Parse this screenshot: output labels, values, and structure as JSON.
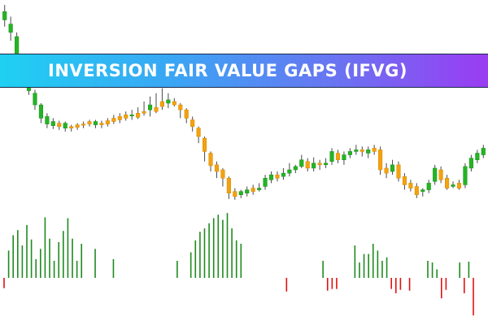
{
  "banner": {
    "title": "INVERSION FAIR VALUE GAPS (IFVG)"
  },
  "colors": {
    "bull": "#23b523",
    "bear": "#f4a10f",
    "wick": "#4a4a4a",
    "hist_positive": "#1f8a1f",
    "hist_negative": "#e01010",
    "banner_start": "#1fd0f2",
    "banner_end": "#9a3cf2"
  },
  "chart_data": [
    {
      "type": "candlestick",
      "candles": [
        [
          220,
          230,
          238,
          212
        ],
        [
          205,
          215,
          224,
          195
        ],
        [
          170,
          200,
          205,
          165
        ],
        [
          150,
          170,
          175,
          142
        ],
        [
          135,
          150,
          152,
          130
        ],
        [
          118,
          132,
          136,
          112
        ],
        [
          102,
          118,
          120,
          96
        ],
        [
          95,
          104,
          108,
          90
        ],
        [
          93,
          98,
          102,
          89
        ],
        [
          96,
          92,
          99,
          88
        ],
        [
          90,
          96,
          98,
          86
        ],
        [
          92,
          90,
          94,
          86
        ],
        [
          94,
          91,
          96,
          88
        ],
        [
          95,
          94,
          98,
          90
        ],
        [
          98,
          95,
          100,
          92
        ],
        [
          94,
          98,
          100,
          90
        ],
        [
          96,
          94,
          99,
          90
        ],
        [
          99,
          95,
          102,
          92
        ],
        [
          102,
          98,
          106,
          95
        ],
        [
          104,
          100,
          108,
          96
        ],
        [
          106,
          102,
          110,
          99
        ],
        [
          105,
          106,
          112,
          100
        ],
        [
          108,
          103,
          115,
          101
        ],
        [
          110,
          108,
          122,
          105
        ],
        [
          112,
          118,
          128,
          104
        ],
        [
          115,
          110,
          132,
          108
        ],
        [
          122,
          116,
          138,
          112
        ],
        [
          120,
          124,
          132,
          114
        ],
        [
          122,
          118,
          126,
          116
        ],
        [
          118,
          112,
          120,
          102
        ],
        [
          112,
          102,
          114,
          96
        ],
        [
          100,
          92,
          104,
          86
        ],
        [
          90,
          80,
          92,
          72
        ],
        [
          78,
          62,
          80,
          50
        ],
        [
          60,
          45,
          62,
          38
        ],
        [
          46,
          38,
          50,
          30
        ],
        [
          40,
          30,
          42,
          20
        ],
        [
          30,
          12,
          32,
          5
        ],
        [
          14,
          8,
          18,
          4
        ],
        [
          10,
          14,
          16,
          6
        ],
        [
          12,
          16,
          20,
          8
        ],
        [
          18,
          14,
          22,
          10
        ],
        [
          16,
          18,
          24,
          14
        ],
        [
          20,
          30,
          34,
          16
        ],
        [
          28,
          34,
          38,
          24
        ],
        [
          34,
          30,
          38,
          26
        ],
        [
          32,
          36,
          42,
          28
        ],
        [
          36,
          40,
          48,
          32
        ],
        [
          40,
          44,
          46,
          36
        ],
        [
          44,
          52,
          58,
          42
        ],
        [
          50,
          42,
          54,
          38
        ],
        [
          42,
          48,
          55,
          38
        ],
        [
          48,
          46,
          52,
          40
        ],
        [
          46,
          48,
          54,
          42
        ],
        [
          50,
          62,
          66,
          46
        ],
        [
          60,
          52,
          64,
          48
        ],
        [
          52,
          58,
          62,
          46
        ],
        [
          58,
          62,
          66,
          54
        ],
        [
          62,
          64,
          70,
          58
        ],
        [
          64,
          62,
          68,
          56
        ],
        [
          60,
          64,
          68,
          54
        ],
        [
          66,
          62,
          70,
          58
        ],
        [
          64,
          40,
          68,
          34
        ],
        [
          42,
          36,
          48,
          30
        ],
        [
          38,
          46,
          52,
          34
        ],
        [
          46,
          30,
          50,
          26
        ],
        [
          32,
          22,
          36,
          16
        ],
        [
          24,
          18,
          28,
          14
        ],
        [
          20,
          10,
          24,
          6
        ],
        [
          14,
          16,
          18,
          8
        ],
        [
          16,
          24,
          28,
          12
        ],
        [
          26,
          42,
          46,
          22
        ],
        [
          40,
          28,
          44,
          24
        ],
        [
          30,
          18,
          34,
          16
        ],
        [
          20,
          22,
          26,
          18
        ],
        [
          24,
          18,
          28,
          16
        ],
        [
          22,
          44,
          48,
          18
        ],
        [
          42,
          54,
          58,
          38
        ],
        [
          52,
          60,
          64,
          48
        ],
        [
          58,
          66,
          70,
          54
        ]
      ]
    },
    {
      "type": "bar",
      "values": [
        -1.2,
        3.2,
        5.0,
        5.6,
        3.8,
        6.2,
        4.5,
        2.2,
        3.4,
        7.1,
        4.6,
        2.0,
        4.2,
        5.5,
        7.0,
        4.6,
        2.0,
        4.0,
        0,
        0,
        3.4,
        0,
        0,
        0,
        2.2,
        0,
        0,
        0,
        0,
        0,
        0,
        0,
        0,
        0,
        0,
        0,
        0,
        0,
        2.0,
        0,
        0,
        3.0,
        4.4,
        5.4,
        5.8,
        6.4,
        7.0,
        7.4,
        6.8,
        7.6,
        5.8,
        4.4,
        4.0,
        0,
        0,
        0,
        0,
        0,
        0,
        0,
        0,
        0,
        -1.6,
        0,
        0,
        0,
        0,
        0,
        0,
        0,
        2.0,
        -1.5,
        -1.3,
        -1.3,
        0,
        0,
        0,
        3.8,
        1.8,
        2.8,
        2.8,
        4.0,
        3.2,
        2.0,
        2.4,
        -1.3,
        -1.8,
        -1.4,
        0,
        -1.5,
        0,
        0,
        0,
        2.0,
        1.8,
        1.0,
        -2.4,
        -1.4,
        0,
        0,
        1.8,
        -1.8,
        1.9,
        -4.4
      ]
    }
  ]
}
